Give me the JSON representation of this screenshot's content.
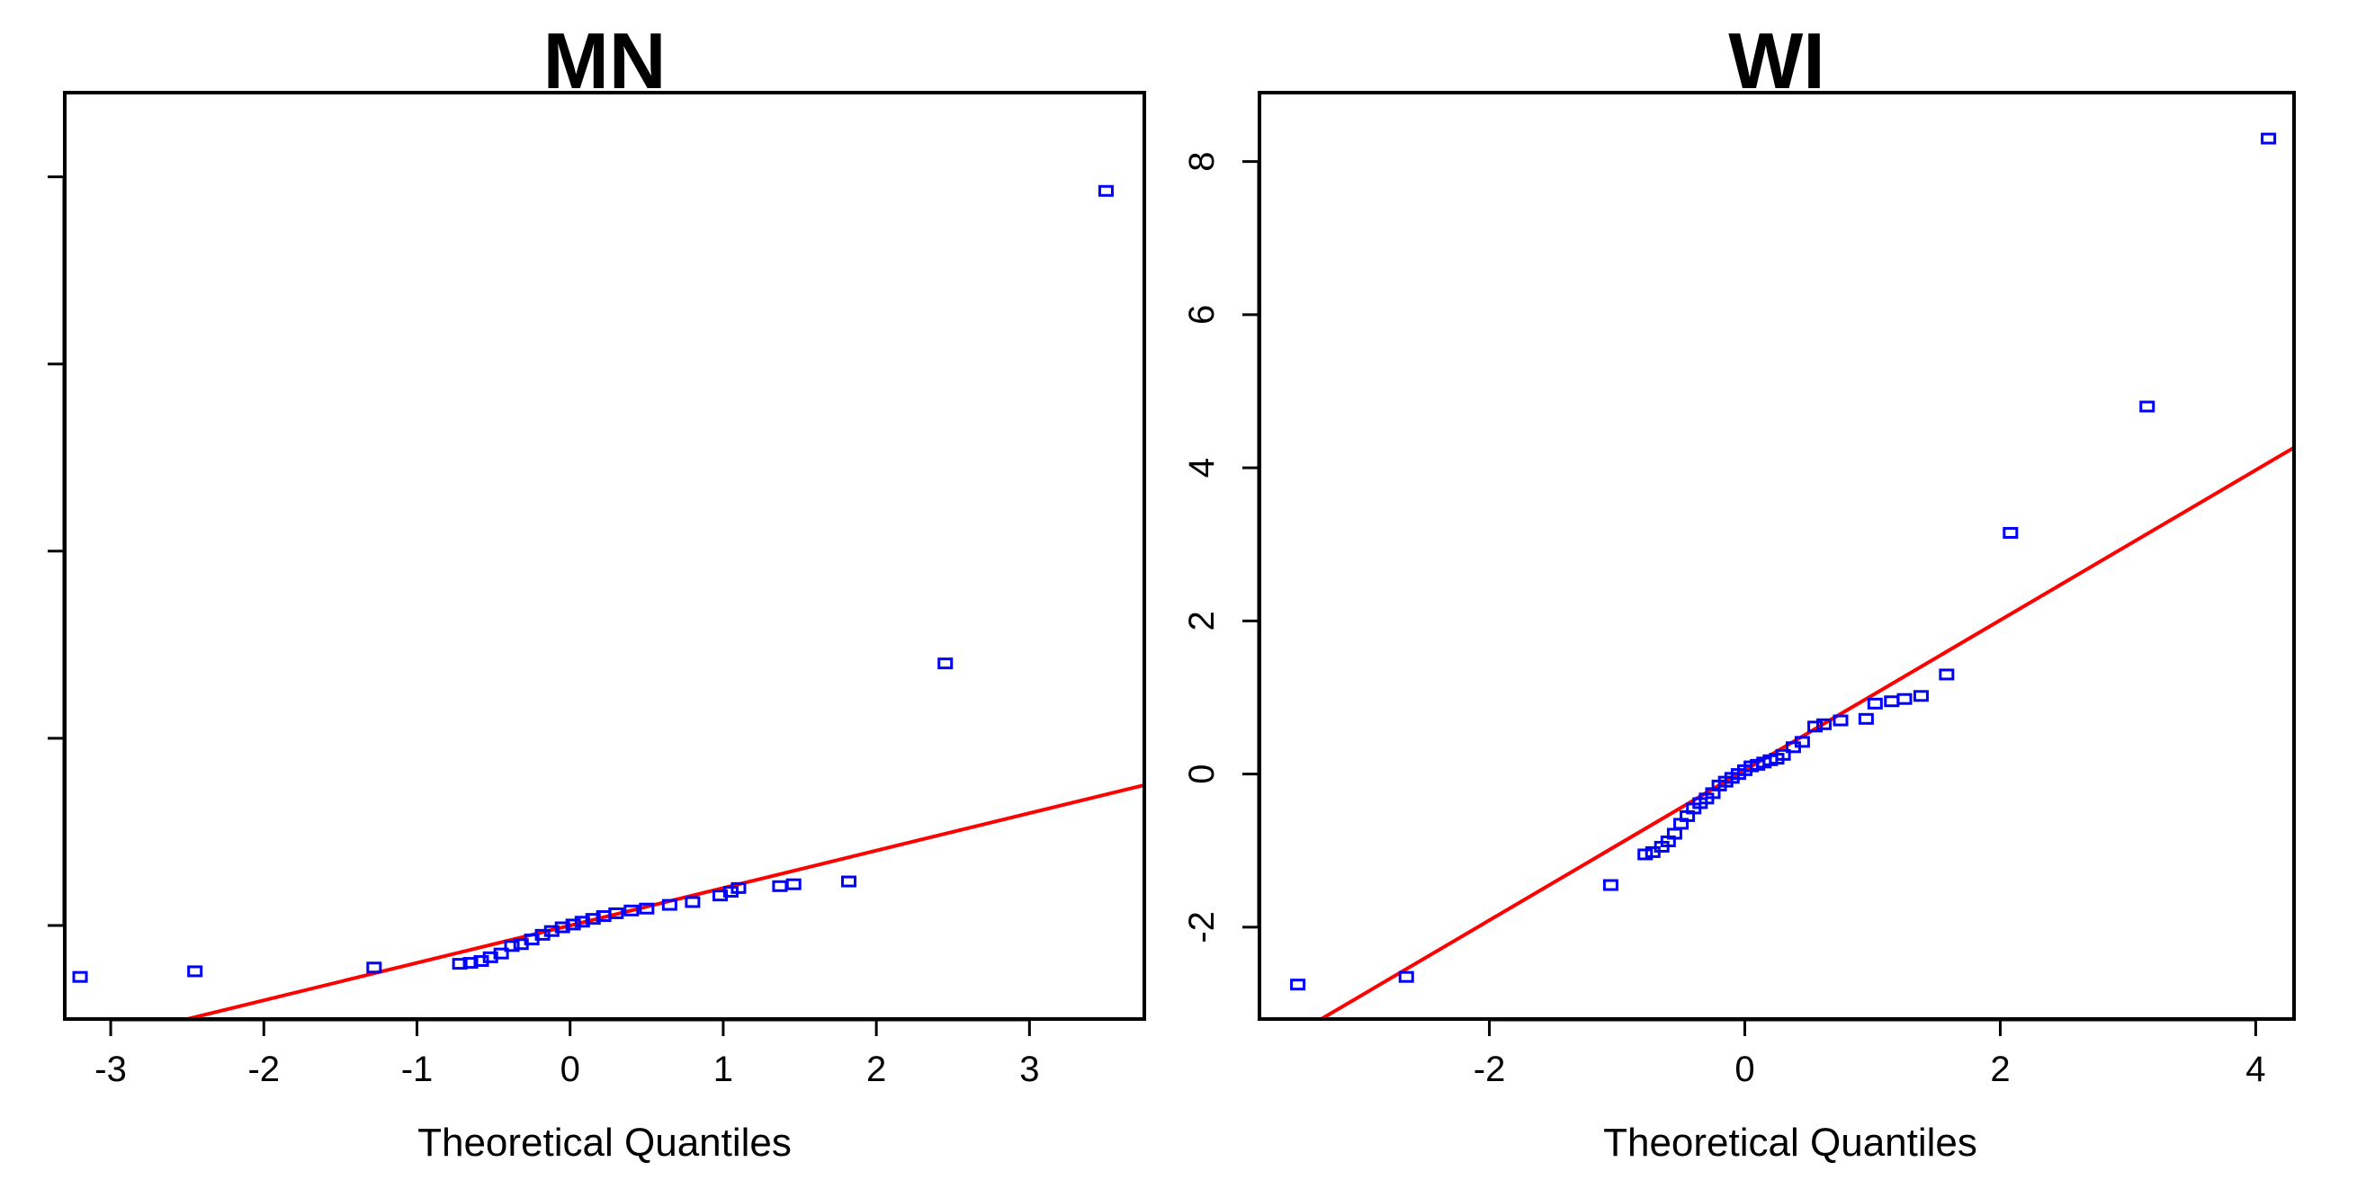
{
  "chart_data": [
    {
      "type": "scatter",
      "title": "MN",
      "xlabel": "Theoretical Quantiles",
      "ylabel": "",
      "xlim": [
        -3.3,
        3.75
      ],
      "ylim": [
        -1,
        8.9
      ],
      "xticks": [
        -3,
        -2,
        -1,
        0,
        1,
        2,
        3
      ],
      "yticks": [
        0,
        2,
        4,
        6,
        8
      ],
      "ytick_labels_visible": false,
      "ref_line": {
        "slope": 0.4,
        "intercept": 0.0,
        "color": "#ff0000"
      },
      "point_color": "#0000ff",
      "points": [
        [
          -3.2,
          -0.55
        ],
        [
          -2.45,
          -0.49
        ],
        [
          -1.28,
          -0.45
        ],
        [
          -0.72,
          -0.41
        ],
        [
          -0.65,
          -0.4
        ],
        [
          -0.58,
          -0.38
        ],
        [
          -0.52,
          -0.34
        ],
        [
          -0.45,
          -0.3
        ],
        [
          -0.38,
          -0.22
        ],
        [
          -0.32,
          -0.2
        ],
        [
          -0.25,
          -0.15
        ],
        [
          -0.18,
          -0.1
        ],
        [
          -0.12,
          -0.06
        ],
        [
          -0.05,
          -0.02
        ],
        [
          0.02,
          0.01
        ],
        [
          0.08,
          0.04
        ],
        [
          0.15,
          0.07
        ],
        [
          0.22,
          0.1
        ],
        [
          0.3,
          0.13
        ],
        [
          0.4,
          0.16
        ],
        [
          0.5,
          0.18
        ],
        [
          0.65,
          0.22
        ],
        [
          0.8,
          0.25
        ],
        [
          0.98,
          0.32
        ],
        [
          1.05,
          0.36
        ],
        [
          1.1,
          0.4
        ],
        [
          1.37,
          0.42
        ],
        [
          1.46,
          0.44
        ],
        [
          1.82,
          0.47
        ],
        [
          2.45,
          2.8
        ],
        [
          3.5,
          7.85
        ]
      ]
    },
    {
      "type": "scatter",
      "title": "WI",
      "xlabel": "Theoretical Quantiles",
      "ylabel": "",
      "xlim": [
        -3.8,
        4.3
      ],
      "ylim": [
        -3.2,
        8.9
      ],
      "xticks": [
        -2,
        0,
        2,
        4
      ],
      "yticks": [
        -2,
        0,
        2,
        4,
        6,
        8
      ],
      "ytick_labels_visible": true,
      "ref_line": {
        "slope": 0.98,
        "intercept": 0.05,
        "color": "#ff0000"
      },
      "point_color": "#0000ff",
      "points": [
        [
          -3.5,
          -2.75
        ],
        [
          -2.65,
          -2.65
        ],
        [
          -1.05,
          -1.45
        ],
        [
          -0.78,
          -1.05
        ],
        [
          -0.72,
          -1.02
        ],
        [
          -0.65,
          -0.95
        ],
        [
          -0.6,
          -0.88
        ],
        [
          -0.55,
          -0.78
        ],
        [
          -0.5,
          -0.65
        ],
        [
          -0.45,
          -0.55
        ],
        [
          -0.4,
          -0.45
        ],
        [
          -0.35,
          -0.38
        ],
        [
          -0.3,
          -0.32
        ],
        [
          -0.25,
          -0.25
        ],
        [
          -0.2,
          -0.15
        ],
        [
          -0.15,
          -0.1
        ],
        [
          -0.1,
          -0.05
        ],
        [
          -0.05,
          0.0
        ],
        [
          0.0,
          0.05
        ],
        [
          0.05,
          0.1
        ],
        [
          0.1,
          0.12
        ],
        [
          0.15,
          0.15
        ],
        [
          0.2,
          0.18
        ],
        [
          0.25,
          0.2
        ],
        [
          0.3,
          0.25
        ],
        [
          0.38,
          0.35
        ],
        [
          0.45,
          0.42
        ],
        [
          0.55,
          0.62
        ],
        [
          0.62,
          0.65
        ],
        [
          0.75,
          0.7
        ],
        [
          0.95,
          0.72
        ],
        [
          1.02,
          0.92
        ],
        [
          1.15,
          0.95
        ],
        [
          1.25,
          0.98
        ],
        [
          1.38,
          1.02
        ],
        [
          1.58,
          1.3
        ],
        [
          2.08,
          3.15
        ],
        [
          3.15,
          4.8
        ],
        [
          4.1,
          8.3
        ]
      ]
    }
  ]
}
